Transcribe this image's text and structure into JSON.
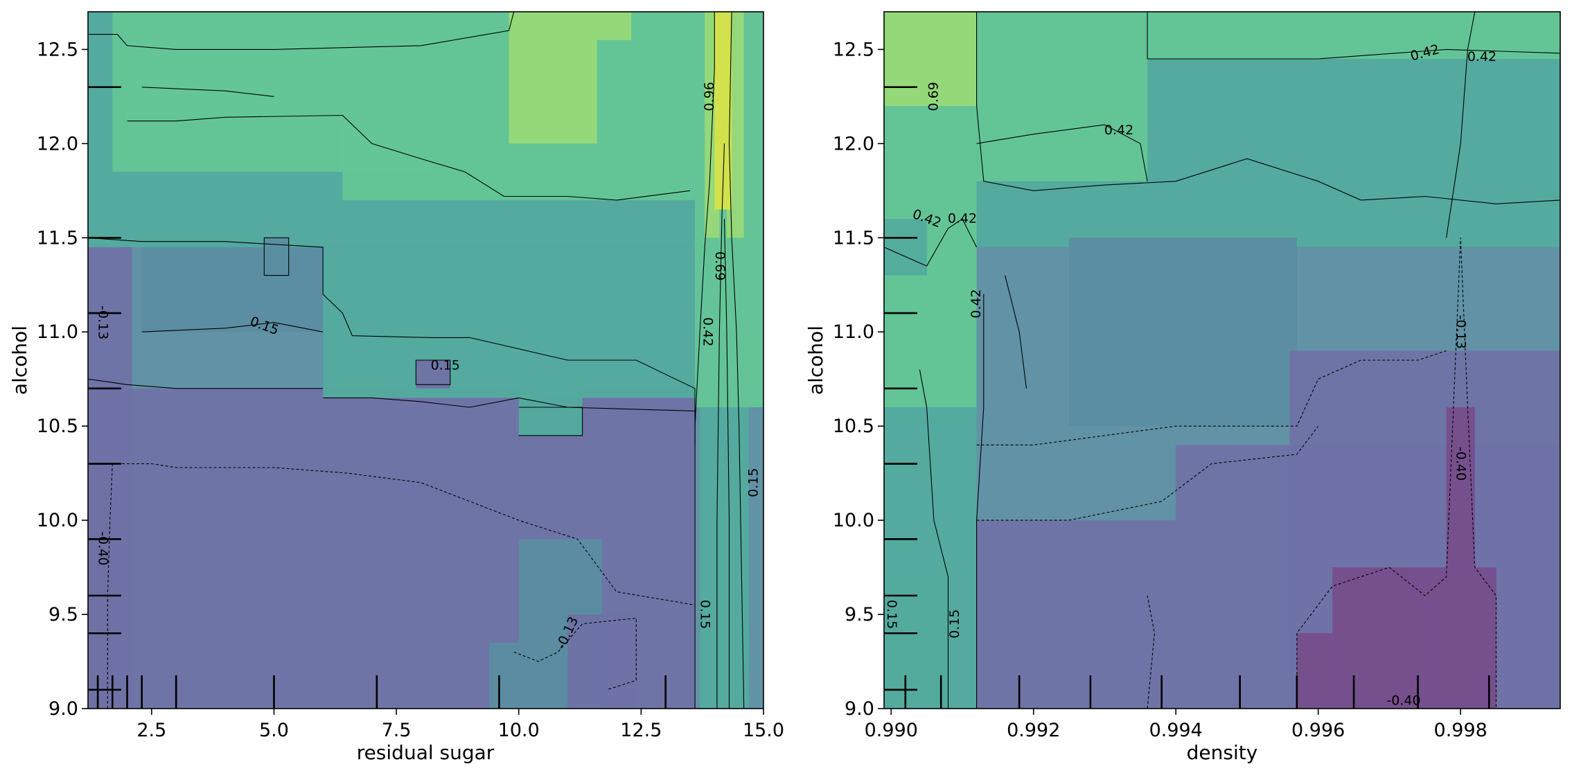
{
  "chart_data": [
    {
      "type": "heatmap",
      "xlabel": "residual sugar",
      "ylabel": "alcohol",
      "xlim": [
        1.2,
        15.0
      ],
      "ylim": [
        9.0,
        12.7
      ],
      "xticks": [
        2.5,
        5.0,
        7.5,
        10.0,
        12.5,
        15.0
      ],
      "xtick_labels": [
        "2.5",
        "5.0",
        "7.5",
        "10.0",
        "12.5",
        "15.0"
      ],
      "yticks": [
        9.0,
        9.5,
        10.0,
        10.5,
        11.0,
        11.5,
        12.0,
        12.5
      ],
      "ytick_labels": [
        "9.0",
        "9.5",
        "10.0",
        "10.5",
        "11.0",
        "11.5",
        "12.0",
        "12.5"
      ],
      "contour_levels": [
        -0.4,
        -0.13,
        0.15,
        0.42,
        0.69,
        0.96
      ],
      "x_deciles": [
        1.4,
        1.7,
        2.0,
        2.3,
        3.0,
        5.0,
        7.1,
        9.6,
        13.0
      ],
      "y_deciles": [
        9.1,
        9.4,
        9.6,
        9.9,
        10.3,
        10.7,
        11.1,
        11.5,
        12.3
      ],
      "contour_labels": [
        {
          "text": "0.96",
          "x": 13.9,
          "y": 12.25,
          "angle": -90
        },
        {
          "text": "0.69",
          "x": 14.1,
          "y": 11.35,
          "angle": 90
        },
        {
          "text": "0.42",
          "x": 13.85,
          "y": 11.0,
          "angle": 90
        },
        {
          "text": "0.15",
          "x": 14.8,
          "y": 10.2,
          "angle": -90
        },
        {
          "text": "0.15",
          "x": 13.8,
          "y": 9.5,
          "angle": 90
        },
        {
          "text": "0.15",
          "x": 4.8,
          "y": 11.03,
          "angle": 20
        },
        {
          "text": "0.15",
          "x": 8.5,
          "y": 10.82,
          "angle": 0
        },
        {
          "text": "-0.13",
          "x": 1.5,
          "y": 11.05,
          "angle": 90
        },
        {
          "text": "-0.13",
          "x": 11.0,
          "y": 9.4,
          "angle": -65
        },
        {
          "text": "-0.40",
          "x": 1.5,
          "y": 9.85,
          "angle": 90
        }
      ]
    },
    {
      "type": "heatmap",
      "xlabel": "density",
      "ylabel": "alcohol",
      "xlim": [
        0.9899,
        0.9994
      ],
      "ylim": [
        9.0,
        12.7
      ],
      "xticks": [
        0.99,
        0.992,
        0.994,
        0.996,
        0.998
      ],
      "xtick_labels": [
        "0.990",
        "0.992",
        "0.994",
        "0.996",
        "0.998"
      ],
      "yticks": [
        9.0,
        9.5,
        10.0,
        10.5,
        11.0,
        11.5,
        12.0,
        12.5
      ],
      "ytick_labels": [
        "9.0",
        "9.5",
        "10.0",
        "10.5",
        "11.0",
        "11.5",
        "12.0",
        "12.5"
      ],
      "contour_levels": [
        -0.4,
        -0.13,
        0.15,
        0.42,
        0.69
      ],
      "x_deciles": [
        0.9902,
        0.9907,
        0.9918,
        0.9928,
        0.9938,
        0.9949,
        0.9957,
        0.9965,
        0.9974,
        0.9984
      ],
      "y_deciles": [
        9.1,
        9.4,
        9.6,
        9.9,
        10.3,
        10.7,
        11.1,
        11.5,
        12.3
      ],
      "contour_labels": [
        {
          "text": "0.69",
          "x": 0.9906,
          "y": 12.25,
          "angle": -90
        },
        {
          "text": "0.42",
          "x": 0.9932,
          "y": 12.07,
          "angle": 0
        },
        {
          "text": "0.42",
          "x": 0.9975,
          "y": 12.48,
          "angle": -15
        },
        {
          "text": "0.42",
          "x": 0.9983,
          "y": 12.46,
          "angle": 0
        },
        {
          "text": "0.42",
          "x": 0.9905,
          "y": 11.6,
          "angle": 20
        },
        {
          "text": "0.42",
          "x": 0.991,
          "y": 11.6,
          "angle": 0
        },
        {
          "text": "0.42",
          "x": 0.9912,
          "y": 11.15,
          "angle": -90
        },
        {
          "text": "-0.13",
          "x": 0.998,
          "y": 11.0,
          "angle": 90
        },
        {
          "text": "-0.40",
          "x": 0.998,
          "y": 10.3,
          "angle": 90
        },
        {
          "text": "0.15",
          "x": 0.9909,
          "y": 9.45,
          "angle": -90
        },
        {
          "text": "0.15",
          "x": 0.99,
          "y": 9.5,
          "angle": 90
        },
        {
          "text": "-0.40",
          "x": 0.9972,
          "y": 9.04,
          "angle": 0
        }
      ]
    }
  ],
  "colors": {
    "lvl_n040": "#774e8b",
    "lvl_n013": "#6e73a6",
    "lvl_015": "#5b8ea1",
    "lvl_042": "#53ab9d",
    "lvl_069": "#64c696",
    "lvl_096": "#97d979",
    "lvl_top": "#d4e14a"
  }
}
